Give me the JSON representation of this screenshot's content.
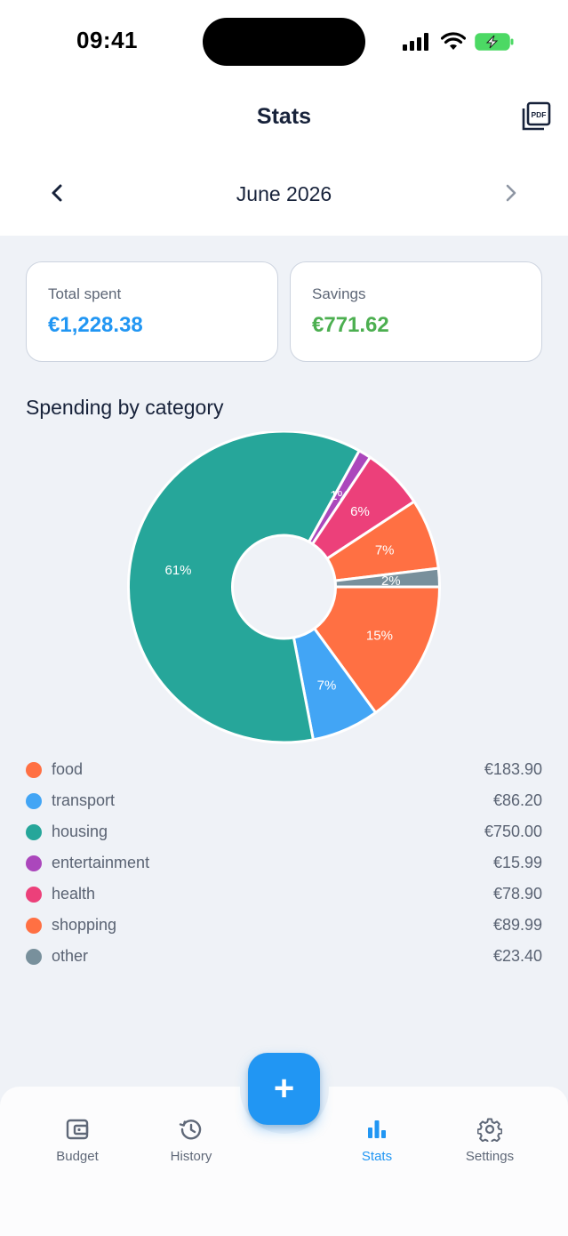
{
  "status_bar": {
    "time": "09:41"
  },
  "header": {
    "title": "Stats",
    "pdf_icon_label": "PDF"
  },
  "month": {
    "label": "June 2026"
  },
  "summary": {
    "total_spent_label": "Total spent",
    "total_spent_value": "€1,228.38",
    "savings_label": "Savings",
    "savings_value": "€771.62",
    "colors": {
      "spent": "#2196f3",
      "savings": "#4caf50"
    }
  },
  "section": {
    "title": "Spending by category"
  },
  "chart_data": {
    "type": "pie",
    "donut": true,
    "categories": [
      "food",
      "transport",
      "housing",
      "entertainment",
      "health",
      "shopping",
      "other"
    ],
    "values": [
      183.9,
      86.2,
      750.0,
      15.99,
      78.9,
      89.99,
      23.4
    ],
    "labels": [
      "15%",
      "7%",
      "61%",
      "1%",
      "6%",
      "7%",
      "2%"
    ],
    "colors": [
      "#ff7043",
      "#42a5f5",
      "#26a69a",
      "#ab47bc",
      "#ec407a",
      "#ff7043",
      "#78909c"
    ]
  },
  "legend": [
    {
      "name": "food",
      "amount": "€183.90",
      "color": "#ff7043"
    },
    {
      "name": "transport",
      "amount": "€86.20",
      "color": "#42a5f5"
    },
    {
      "name": "housing",
      "amount": "€750.00",
      "color": "#26a69a"
    },
    {
      "name": "entertainment",
      "amount": "€15.99",
      "color": "#ab47bc"
    },
    {
      "name": "health",
      "amount": "€78.90",
      "color": "#ec407a"
    },
    {
      "name": "shopping",
      "amount": "€89.99",
      "color": "#ff7043"
    },
    {
      "name": "other",
      "amount": "€23.40",
      "color": "#78909c"
    }
  ],
  "bottom_nav": {
    "items": [
      {
        "label": "Budget",
        "icon": "wallet-icon"
      },
      {
        "label": "History",
        "icon": "history-icon"
      },
      {
        "label": "Stats",
        "icon": "bar-chart-icon"
      },
      {
        "label": "Settings",
        "icon": "gear-icon"
      }
    ],
    "active": "Stats",
    "active_color": "#2196f3"
  },
  "fab": {
    "label": "+"
  }
}
